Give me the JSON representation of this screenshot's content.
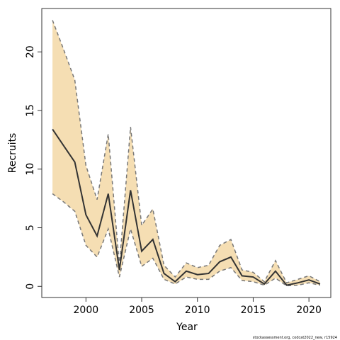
{
  "chart_data": {
    "type": "line",
    "xlabel": "Year",
    "ylabel": "Recruits",
    "footnote": "stockassessment.org, codcat2022_new, r15924",
    "x": [
      1997,
      1998,
      1999,
      2000,
      2001,
      2002,
      2003,
      2004,
      2005,
      2006,
      2007,
      2008,
      2009,
      2010,
      2011,
      2012,
      2013,
      2014,
      2015,
      2016,
      2017,
      2018,
      2019,
      2020,
      2021
    ],
    "series": [
      {
        "color": "#333333",
        "values": [
          13.4,
          12.0,
          10.6,
          6.1,
          4.3,
          7.9,
          1.4,
          8.2,
          3.0,
          4.0,
          1.1,
          0.4,
          1.3,
          1.0,
          1.1,
          2.1,
          2.5,
          0.9,
          0.8,
          0.2,
          1.3,
          0.1,
          0.3,
          0.55,
          0.2
        ]
      }
    ],
    "band": {
      "color": "#f5deb3",
      "line_color": "#777777",
      "upper": [
        22.7,
        20.2,
        17.6,
        10.3,
        7.4,
        13.0,
        1.8,
        13.6,
        5.2,
        6.6,
        1.8,
        0.8,
        2.0,
        1.6,
        1.8,
        3.5,
        4.0,
        1.4,
        1.2,
        0.4,
        2.2,
        0.3,
        0.6,
        0.9,
        0.4
      ],
      "lower": [
        7.9,
        7.2,
        6.4,
        3.5,
        2.5,
        4.9,
        0.8,
        4.9,
        1.7,
        2.4,
        0.6,
        0.2,
        0.8,
        0.6,
        0.6,
        1.3,
        1.6,
        0.5,
        0.4,
        0.1,
        0.7,
        0.05,
        0.1,
        0.3,
        0.1
      ]
    },
    "xlim": [
      1996.04,
      2021.96
    ],
    "xticks": [
      2000,
      2005,
      2010,
      2015,
      2020
    ],
    "ylim": [
      -0.95,
      23.7
    ],
    "yticks": [
      0,
      5,
      10,
      15,
      20
    ]
  }
}
